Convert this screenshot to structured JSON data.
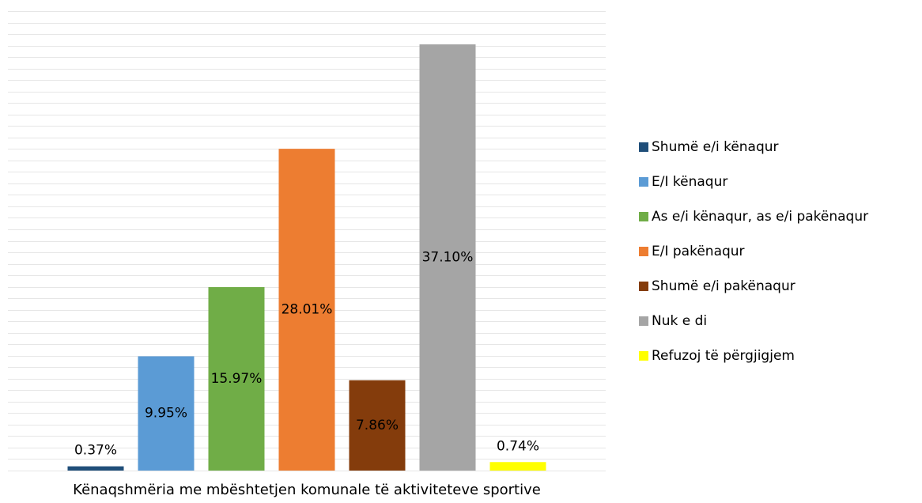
{
  "chart_data": {
    "type": "bar",
    "xlabel": "Kënaqshmëria me mbështetjen komunale të aktiviteteve sportive",
    "ylim": [
      0,
      40
    ],
    "yticks": [
      0,
      1,
      2,
      3,
      4,
      5,
      6,
      7,
      8,
      9,
      10,
      11,
      12,
      13,
      14,
      15,
      16,
      17,
      18,
      19,
      20,
      21,
      22,
      23,
      24,
      25,
      26,
      27,
      28,
      29,
      30,
      31,
      32,
      33,
      34,
      35,
      36,
      37,
      38,
      39,
      40
    ],
    "grid": true,
    "legend": "right",
    "series": [
      {
        "name": "Shumë e/i kënaqur",
        "color": "#1f4e79",
        "values": [
          0.37
        ],
        "value_labels": [
          "0.37%"
        ]
      },
      {
        "name": "E/I kënaqur",
        "color": "#5b9bd5",
        "values": [
          9.95
        ],
        "value_labels": [
          "9.95%"
        ]
      },
      {
        "name": "As e/i kënaqur, as e/i pakënaqur",
        "color": "#70ad47",
        "values": [
          15.97
        ],
        "value_labels": [
          "15.97%"
        ]
      },
      {
        "name": "E/I pakënaqur",
        "color": "#ed7d31",
        "values": [
          28.01
        ],
        "value_labels": [
          "28.01%"
        ]
      },
      {
        "name": "Shumë e/i pakënaqur",
        "color": "#843c0c",
        "values": [
          7.86
        ],
        "value_labels": [
          "7.86%"
        ]
      },
      {
        "name": "Nuk e di",
        "color": "#a5a5a5",
        "values": [
          37.1
        ],
        "value_labels": [
          "37.10%"
        ]
      },
      {
        "name": "Refuzoj të përgjigjem",
        "color": "#ffff00",
        "values": [
          0.74
        ],
        "value_labels": [
          "0.74%"
        ]
      }
    ]
  }
}
